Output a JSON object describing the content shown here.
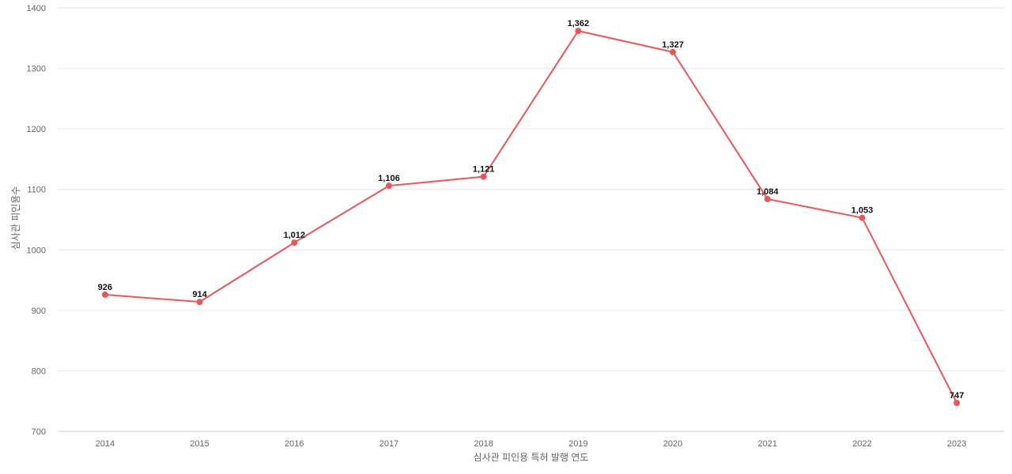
{
  "chart_data": {
    "type": "line",
    "title": "",
    "xlabel": "심사관 피인용 특허 발행 연도",
    "ylabel": "심사관 피인용수",
    "x": [
      "2014",
      "2015",
      "2016",
      "2017",
      "2018",
      "2019",
      "2020",
      "2021",
      "2022",
      "2023"
    ],
    "series": [
      {
        "name": "",
        "values": [
          926,
          914,
          1012,
          1106,
          1121,
          1362,
          1327,
          1084,
          1053,
          747
        ],
        "data_labels": [
          "926",
          "914",
          "1,012",
          "1,106",
          "1,121",
          "1,362",
          "1,327",
          "1,084",
          "1,053",
          "747"
        ],
        "color": "#e8585a"
      }
    ],
    "ylim": [
      700,
      1400
    ],
    "yticks": [
      700,
      800,
      900,
      1000,
      1100,
      1200,
      1300,
      1400
    ],
    "grid": true,
    "legend": "none"
  }
}
